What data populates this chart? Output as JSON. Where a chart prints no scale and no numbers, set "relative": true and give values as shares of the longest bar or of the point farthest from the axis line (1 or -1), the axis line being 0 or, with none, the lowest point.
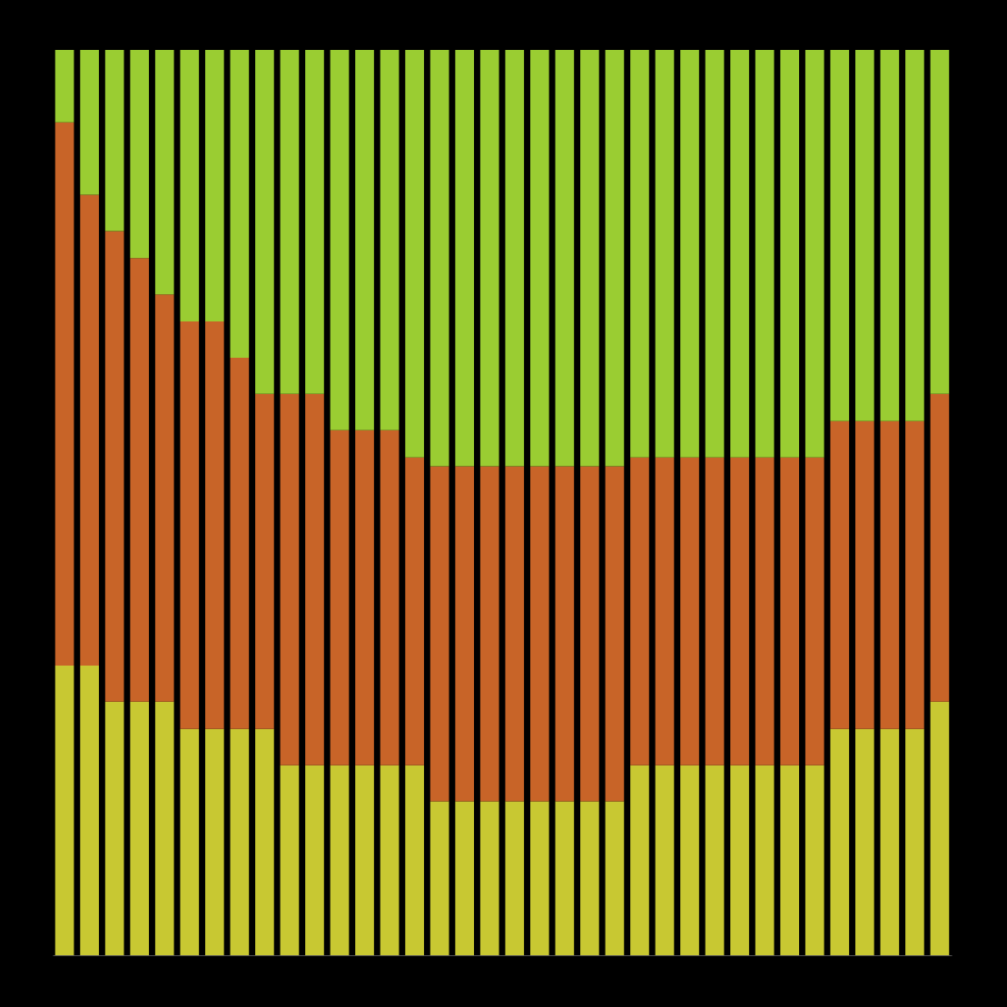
{
  "chart_data": {
    "type": "bar",
    "relative": true,
    "stacked": true,
    "legend": false,
    "categories": [
      null,
      null,
      null,
      null,
      null,
      null,
      null,
      null,
      null,
      null,
      null,
      null,
      null,
      null,
      null,
      null,
      null,
      null,
      null,
      null,
      null,
      null,
      null,
      null,
      null,
      null,
      null,
      null,
      null,
      null,
      null,
      null,
      null,
      null,
      null,
      null
    ],
    "series": [
      {
        "color": "#c8c832",
        "values": [
          0.32,
          0.32,
          0.28,
          0.28,
          0.28,
          0.25,
          0.25,
          0.25,
          0.25,
          0.21,
          0.21,
          0.21,
          0.21,
          0.21,
          0.21,
          0.17,
          0.17,
          0.17,
          0.17,
          0.17,
          0.17,
          0.17,
          0.17,
          0.21,
          0.21,
          0.21,
          0.21,
          0.21,
          0.21,
          0.21,
          0.21,
          0.25,
          0.25,
          0.25,
          0.25,
          0.28
        ]
      },
      {
        "color": "#c86428",
        "values": [
          0.6,
          0.52,
          0.52,
          0.49,
          0.45,
          0.45,
          0.45,
          0.41,
          0.37,
          0.41,
          0.41,
          0.37,
          0.37,
          0.37,
          0.34,
          0.37,
          0.37,
          0.37,
          0.37,
          0.37,
          0.37,
          0.37,
          0.37,
          0.34,
          0.34,
          0.34,
          0.34,
          0.34,
          0.34,
          0.34,
          0.34,
          0.34,
          0.34,
          0.34,
          0.34,
          0.34
        ]
      },
      {
        "color": "#9acd32",
        "values": [
          0.08,
          0.16,
          0.2,
          0.23,
          0.27,
          0.3,
          0.3,
          0.34,
          0.38,
          0.38,
          0.38,
          0.42,
          0.42,
          0.42,
          0.45,
          0.46,
          0.46,
          0.46,
          0.46,
          0.46,
          0.46,
          0.46,
          0.46,
          0.45,
          0.45,
          0.45,
          0.45,
          0.45,
          0.45,
          0.45,
          0.45,
          0.41,
          0.41,
          0.41,
          0.41,
          0.38
        ]
      }
    ]
  }
}
